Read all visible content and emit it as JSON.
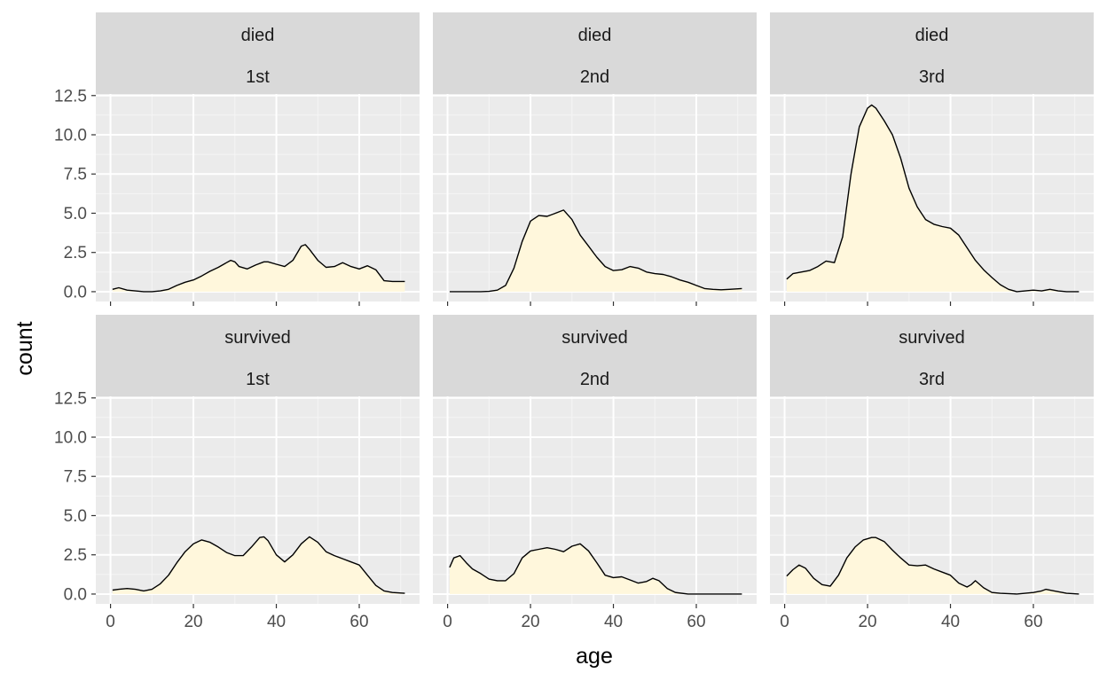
{
  "chart_data": {
    "type": "area",
    "xlabel": "age",
    "ylabel": "count",
    "xlim": [
      0,
      72
    ],
    "ylim": [
      0,
      12.5
    ],
    "xticks": [
      "0",
      "20",
      "40",
      "60"
    ],
    "yticks": [
      "0.0",
      "2.5",
      "5.0",
      "7.5",
      "10.0",
      "12.5"
    ],
    "grid": true,
    "fill_color": "#FFF7DC",
    "line_color": "#000000",
    "panel_background": "#EBEBEB",
    "strip_background": "#D9D9D9",
    "panels": [
      {
        "row": "died",
        "col": "1st",
        "x": [
          0.5,
          2,
          4,
          6,
          8,
          10,
          12,
          14,
          16,
          18,
          20,
          22,
          24,
          26,
          28,
          29,
          30,
          31,
          33,
          35,
          37,
          38,
          40,
          42,
          44,
          46,
          47,
          48,
          50,
          52,
          54,
          56,
          58,
          60,
          62,
          64,
          66,
          68,
          70,
          71
        ],
        "y": [
          0.15,
          0.25,
          0.1,
          0.05,
          0.0,
          0.0,
          0.05,
          0.15,
          0.4,
          0.6,
          0.75,
          1.0,
          1.3,
          1.55,
          1.85,
          2.0,
          1.9,
          1.6,
          1.45,
          1.7,
          1.9,
          1.9,
          1.75,
          1.6,
          2.0,
          2.9,
          3.0,
          2.7,
          2.0,
          1.55,
          1.6,
          1.85,
          1.6,
          1.45,
          1.65,
          1.4,
          0.7,
          0.65,
          0.65,
          0.65
        ]
      },
      {
        "row": "died",
        "col": "2nd",
        "x": [
          0.5,
          5,
          8,
          10,
          12,
          14,
          16,
          18,
          20,
          22,
          24,
          26,
          28,
          30,
          32,
          34,
          36,
          38,
          40,
          42,
          44,
          46,
          48,
          50,
          52,
          54,
          56,
          58,
          60,
          62,
          64,
          66,
          68,
          71
        ],
        "y": [
          0.0,
          0.0,
          0.0,
          0.02,
          0.1,
          0.4,
          1.5,
          3.2,
          4.5,
          4.85,
          4.8,
          5.0,
          5.2,
          4.6,
          3.6,
          2.9,
          2.2,
          1.6,
          1.35,
          1.4,
          1.6,
          1.5,
          1.25,
          1.15,
          1.1,
          0.95,
          0.75,
          0.6,
          0.4,
          0.2,
          0.15,
          0.12,
          0.15,
          0.2
        ]
      },
      {
        "row": "died",
        "col": "3rd",
        "x": [
          0.5,
          2,
          4,
          6,
          8,
          10,
          12,
          14,
          16,
          18,
          20,
          21,
          22,
          24,
          26,
          28,
          30,
          32,
          34,
          36,
          38,
          40,
          42,
          44,
          46,
          48,
          50,
          52,
          54,
          56,
          58,
          60,
          62,
          64,
          66,
          68,
          71
        ],
        "y": [
          0.8,
          1.15,
          1.25,
          1.35,
          1.6,
          1.95,
          1.85,
          3.5,
          7.5,
          10.5,
          11.7,
          11.9,
          11.7,
          10.9,
          10.0,
          8.5,
          6.6,
          5.4,
          4.6,
          4.3,
          4.15,
          4.05,
          3.6,
          2.8,
          2.0,
          1.4,
          0.9,
          0.45,
          0.15,
          0.0,
          0.05,
          0.1,
          0.05,
          0.15,
          0.05,
          0.0,
          0.0
        ]
      },
      {
        "row": "survived",
        "col": "1st",
        "x": [
          0.5,
          2,
          4,
          6,
          8,
          10,
          12,
          14,
          16,
          18,
          20,
          22,
          24,
          26,
          28,
          30,
          32,
          34,
          36,
          37,
          38,
          40,
          42,
          44,
          46,
          48,
          50,
          52,
          54,
          56,
          58,
          60,
          62,
          64,
          66,
          68,
          71
        ],
        "y": [
          0.25,
          0.3,
          0.35,
          0.3,
          0.2,
          0.3,
          0.65,
          1.2,
          2.0,
          2.7,
          3.2,
          3.45,
          3.3,
          3.0,
          2.65,
          2.45,
          2.45,
          3.0,
          3.6,
          3.65,
          3.4,
          2.5,
          2.05,
          2.5,
          3.2,
          3.65,
          3.3,
          2.7,
          2.45,
          2.25,
          2.05,
          1.85,
          1.2,
          0.55,
          0.2,
          0.1,
          0.05
        ]
      },
      {
        "row": "survived",
        "col": "2nd",
        "x": [
          0.5,
          1.5,
          3,
          4.5,
          6,
          8,
          10,
          12,
          14,
          16,
          18,
          20,
          22,
          24,
          26,
          28,
          30,
          32,
          34,
          36,
          38,
          40,
          42,
          44,
          46,
          48,
          49.5,
          51,
          53,
          55,
          58,
          62,
          66,
          71
        ],
        "y": [
          1.7,
          2.3,
          2.45,
          2.0,
          1.6,
          1.3,
          0.95,
          0.85,
          0.85,
          1.3,
          2.3,
          2.75,
          2.85,
          2.95,
          2.85,
          2.7,
          3.05,
          3.2,
          2.75,
          2.0,
          1.2,
          1.05,
          1.1,
          0.9,
          0.7,
          0.8,
          1.0,
          0.85,
          0.35,
          0.1,
          0.0,
          0.0,
          0.0,
          0.0
        ]
      },
      {
        "row": "survived",
        "col": "3rd",
        "x": [
          0.5,
          2,
          3.5,
          5,
          7,
          9,
          11,
          13,
          15,
          17,
          19,
          21,
          22,
          24,
          26,
          28,
          30,
          32,
          34,
          36,
          38,
          40,
          42,
          44,
          45,
          46,
          48,
          50,
          52,
          56,
          60,
          62,
          63,
          65,
          68,
          71
        ],
        "y": [
          1.15,
          1.55,
          1.85,
          1.65,
          1.0,
          0.6,
          0.5,
          1.2,
          2.3,
          3.0,
          3.45,
          3.6,
          3.6,
          3.35,
          2.8,
          2.3,
          1.85,
          1.8,
          1.85,
          1.6,
          1.4,
          1.2,
          0.7,
          0.45,
          0.6,
          0.85,
          0.4,
          0.1,
          0.05,
          0.0,
          0.1,
          0.2,
          0.3,
          0.2,
          0.05,
          0.0
        ]
      }
    ]
  }
}
